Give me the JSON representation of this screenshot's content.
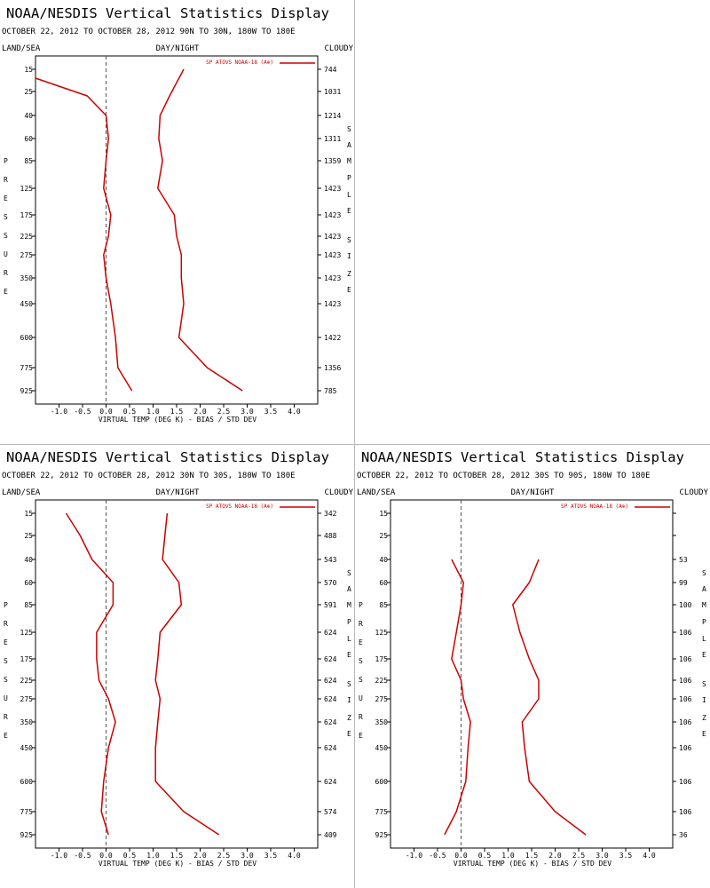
{
  "panels": [
    {
      "title": "NOAA/NESDIS Vertical Statistics Display",
      "subtitle": "OCTOBER 22, 2012 TO OCTOBER 28, 2012  90N TO 30N, 180W TO 180E",
      "left_label": "LAND/SEA",
      "mid_label": "DAY/NIGHT",
      "right_label": "CLOUDY",
      "left_axis_vertical": "PRESSURE",
      "right_axis_vertical": "SAMPLE SIZE",
      "legend": "SP ATOVS NOAA-18 (A⊕)",
      "xlabel": "VIRTUAL TEMP (DEG K) - BIAS / STD DEV",
      "sample_sizes": [
        "744",
        "1031",
        "1214",
        "1311",
        "1359",
        "1423",
        "1423",
        "1423",
        "1423",
        "1423",
        "1423",
        "1422",
        "1356",
        "785"
      ]
    },
    {
      "title": "NOAA/NESDIS Vertical Statistics Display",
      "subtitle": "OCTOBER 22, 2012 TO OCTOBER 28, 2012  30N TO 30S, 180W TO 180E",
      "left_label": "LAND/SEA",
      "mid_label": "DAY/NIGHT",
      "right_label": "CLOUDY",
      "left_axis_vertical": "PRESSURE",
      "right_axis_vertical": "SAMPLE SIZE",
      "legend": "SP ATOVS NOAA-18 (A⊕)",
      "xlabel": "VIRTUAL TEMP (DEG K) - BIAS / STD DEV",
      "sample_sizes": [
        "342",
        "488",
        "543",
        "570",
        "591",
        "624",
        "624",
        "624",
        "624",
        "624",
        "624",
        "624",
        "574",
        "409"
      ]
    },
    {
      "title": "NOAA/NESDIS Vertical Statistics Display",
      "subtitle": "OCTOBER 22, 2012 TO OCTOBER 28, 2012  30S TO 90S, 180W TO 180E",
      "left_label": "LAND/SEA",
      "mid_label": "DAY/NIGHT",
      "right_label": "CLOUDY",
      "left_axis_vertical": "PRESSURE",
      "right_axis_vertical": "SAMPLE SIZE",
      "legend": "SP ATOVS NOAA-18 (A⊕)",
      "xlabel": "VIRTUAL TEMP (DEG K) - BIAS / STD DEV",
      "sample_sizes": [
        "",
        "",
        "53",
        "99",
        "100",
        "106",
        "106",
        "106",
        "106",
        "106",
        "106",
        "106",
        "106",
        "36"
      ]
    }
  ],
  "chart_data": [
    {
      "type": "line",
      "title": "NOAA/NESDIS Vertical Statistics Display",
      "subtitle": "OCTOBER 22, 2012 TO OCTOBER 28, 2012  90N TO 30N, 180W TO 180E",
      "xlabel": "VIRTUAL TEMP (DEG K) - BIAS / STD DEV",
      "ylabel": "PRESSURE",
      "xlim": [
        -1.5,
        4.5
      ],
      "x_ticks": [
        "-1.0",
        "-0.5",
        "0.0",
        "0.5",
        "1.0",
        "1.5",
        "2.0",
        "2.5",
        "3.0",
        "3.5",
        "4.0"
      ],
      "pressure_levels": [
        "15",
        "25",
        "40",
        "60",
        "85",
        "125",
        "175",
        "225",
        "275",
        "350",
        "450",
        "600",
        "775",
        "925"
      ],
      "series": [
        {
          "name": "",
          "color": "#cc0000",
          "points": [
            [
              -1.5,
              "20"
            ],
            [
              -0.4,
              "30"
            ],
            [
              0.0,
              "40"
            ],
            [
              0.05,
              "60"
            ],
            [
              0.0,
              "85"
            ],
            [
              -0.05,
              "125"
            ],
            [
              0.1,
              "175"
            ],
            [
              0.05,
              "225"
            ],
            [
              -0.05,
              "275"
            ],
            [
              0.0,
              "350"
            ],
            [
              0.1,
              "450"
            ],
            [
              0.2,
              "600"
            ],
            [
              0.25,
              "775"
            ],
            [
              0.55,
              "925"
            ]
          ]
        },
        {
          "name": "",
          "color": "#cc0000",
          "points": [
            [
              1.65,
              "15"
            ],
            [
              1.35,
              "30"
            ],
            [
              1.15,
              "40"
            ],
            [
              1.12,
              "60"
            ],
            [
              1.2,
              "85"
            ],
            [
              1.1,
              "125"
            ],
            [
              1.45,
              "175"
            ],
            [
              1.5,
              "225"
            ],
            [
              1.6,
              "275"
            ],
            [
              1.6,
              "350"
            ],
            [
              1.65,
              "450"
            ],
            [
              1.55,
              "600"
            ],
            [
              2.15,
              "775"
            ],
            [
              2.9,
              "925"
            ]
          ]
        }
      ]
    },
    {
      "type": "line",
      "title": "NOAA/NESDIS Vertical Statistics Display",
      "subtitle": "OCTOBER 22, 2012 TO OCTOBER 28, 2012  30N TO 30S, 180W TO 180E",
      "xlabel": "VIRTUAL TEMP (DEG K) - BIAS / STD DEV",
      "ylabel": "PRESSURE",
      "xlim": [
        -1.5,
        4.5
      ],
      "x_ticks": [
        "-1.0",
        "-0.5",
        "0.0",
        "0.5",
        "1.0",
        "1.5",
        "2.0",
        "2.5",
        "3.0",
        "3.5",
        "4.0"
      ],
      "pressure_levels": [
        "15",
        "25",
        "40",
        "60",
        "85",
        "125",
        "175",
        "225",
        "275",
        "350",
        "450",
        "600",
        "775",
        "925"
      ],
      "series": [
        {
          "name": "",
          "color": "#cc0000",
          "points": [
            [
              -0.85,
              "15"
            ],
            [
              -0.55,
              "25"
            ],
            [
              -0.3,
              "40"
            ],
            [
              0.15,
              "60"
            ],
            [
              0.15,
              "85"
            ],
            [
              -0.2,
              "125"
            ],
            [
              -0.2,
              "175"
            ],
            [
              -0.15,
              "225"
            ],
            [
              0.05,
              "275"
            ],
            [
              0.2,
              "350"
            ],
            [
              0.05,
              "450"
            ],
            [
              -0.05,
              "600"
            ],
            [
              -0.1,
              "775"
            ],
            [
              0.05,
              "925"
            ]
          ]
        },
        {
          "name": "",
          "color": "#cc0000",
          "points": [
            [
              1.3,
              "15"
            ],
            [
              1.25,
              "25"
            ],
            [
              1.2,
              "40"
            ],
            [
              1.55,
              "60"
            ],
            [
              1.6,
              "85"
            ],
            [
              1.15,
              "125"
            ],
            [
              1.1,
              "175"
            ],
            [
              1.05,
              "225"
            ],
            [
              1.15,
              "275"
            ],
            [
              1.1,
              "350"
            ],
            [
              1.05,
              "450"
            ],
            [
              1.05,
              "600"
            ],
            [
              1.65,
              "775"
            ],
            [
              2.4,
              "925"
            ]
          ]
        }
      ]
    },
    {
      "type": "line",
      "title": "NOAA/NESDIS Vertical Statistics Display",
      "subtitle": "OCTOBER 22, 2012 TO OCTOBER 28, 2012  30S TO 90S, 180W TO 180E",
      "xlabel": "VIRTUAL TEMP (DEG K) - BIAS / STD DEV",
      "ylabel": "PRESSURE",
      "xlim": [
        -1.5,
        4.5
      ],
      "x_ticks": [
        "-1.0",
        "-0.5",
        "0.0",
        "0.5",
        "1.0",
        "1.5",
        "2.0",
        "2.5",
        "3.0",
        "3.5",
        "4.0"
      ],
      "pressure_levels": [
        "15",
        "25",
        "40",
        "60",
        "85",
        "125",
        "175",
        "225",
        "275",
        "350",
        "450",
        "600",
        "775",
        "925"
      ],
      "series": [
        {
          "name": "",
          "color": "#cc0000",
          "points": [
            [
              -0.2,
              "40"
            ],
            [
              0.05,
              "60"
            ],
            [
              0.0,
              "85"
            ],
            [
              -0.1,
              "125"
            ],
            [
              -0.2,
              "175"
            ],
            [
              0.0,
              "225"
            ],
            [
              0.05,
              "275"
            ],
            [
              0.2,
              "350"
            ],
            [
              0.15,
              "450"
            ],
            [
              0.1,
              "600"
            ],
            [
              -0.1,
              "775"
            ],
            [
              -0.35,
              "925"
            ]
          ]
        },
        {
          "name": "",
          "color": "#cc0000",
          "points": [
            [
              1.65,
              "40"
            ],
            [
              1.45,
              "60"
            ],
            [
              1.1,
              "85"
            ],
            [
              1.25,
              "125"
            ],
            [
              1.45,
              "175"
            ],
            [
              1.65,
              "225"
            ],
            [
              1.65,
              "275"
            ],
            [
              1.3,
              "350"
            ],
            [
              1.35,
              "450"
            ],
            [
              1.45,
              "600"
            ],
            [
              2.0,
              "775"
            ],
            [
              2.65,
              "925"
            ]
          ]
        }
      ]
    }
  ]
}
